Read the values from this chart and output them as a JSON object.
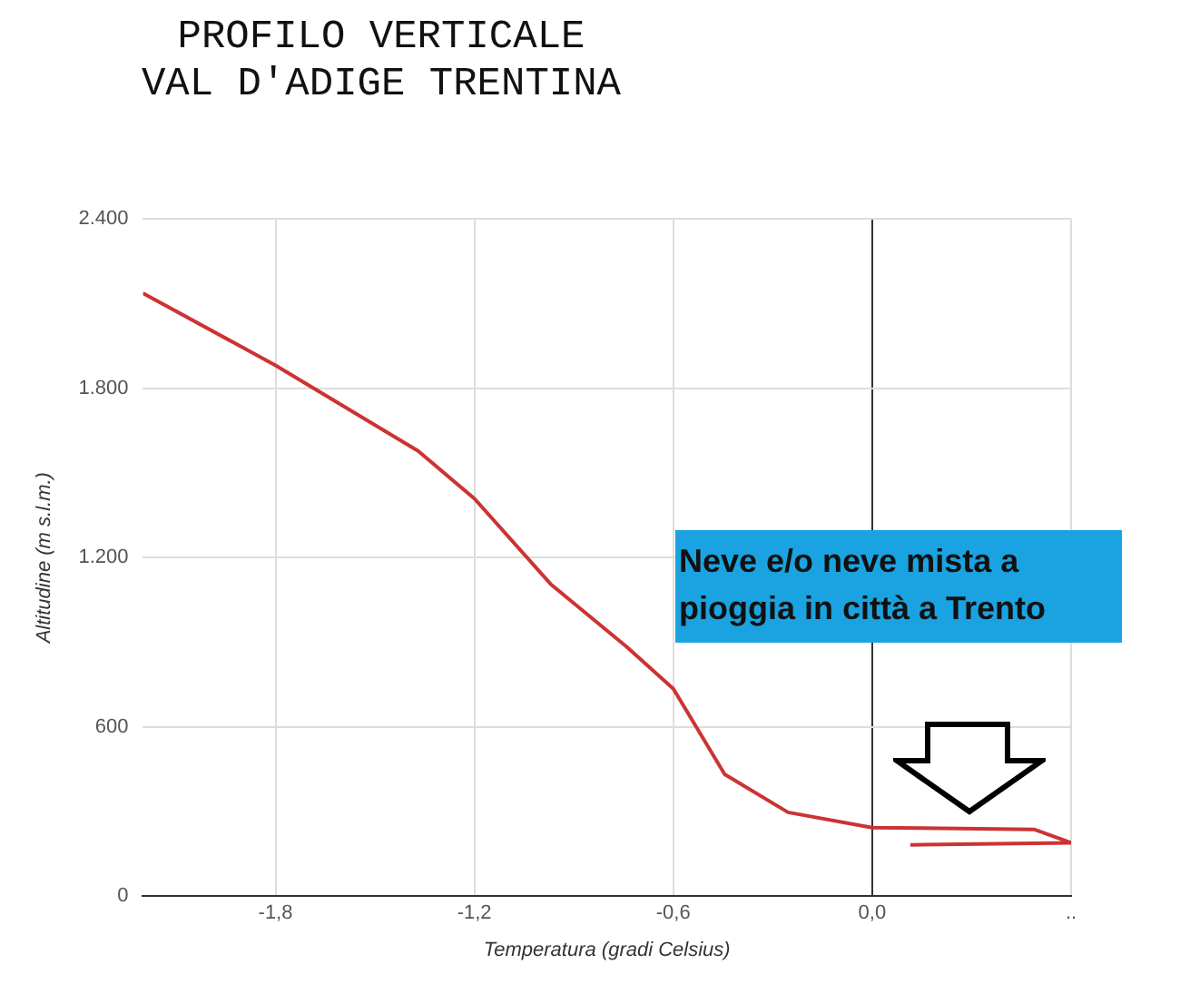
{
  "chart_data": {
    "type": "line",
    "title": "PROFILO VERTICALE\nVAL D'ADIGE TRENTINA",
    "xlabel": "Temperatura (gradi Celsius)",
    "ylabel": "Altitudine (m s.l.m.)",
    "annotations": [
      "Neve e/o neve mista a pioggia in città a Trento"
    ],
    "series": [
      {
        "color": "#cc3333",
        "x": [
          -2.2,
          -1.8,
          -1.37,
          -1.2,
          -0.97,
          -0.74,
          -0.6,
          -0.445,
          -0.254,
          0.0,
          0.49,
          0.6,
          0.115
        ],
        "values": [
          2137,
          1881,
          1578,
          1409,
          1106,
          883,
          735,
          432,
          297,
          243,
          236,
          189,
          182
        ]
      }
    ],
    "xlim": [
      -2.2,
      0.6
    ],
    "xticks": [
      {
        "value": -1.8,
        "label": "-1,8"
      },
      {
        "value": -1.2,
        "label": "-1,2"
      },
      {
        "value": -0.6,
        "label": "-0,6"
      },
      {
        "value": 0,
        "label": "0,0"
      },
      {
        "value": 0.6,
        "label": ".."
      }
    ],
    "ylim": [
      0,
      2400
    ],
    "yticks": [
      0,
      600,
      {
        "value": 1200,
        "label": "1.200"
      },
      {
        "value": 1800,
        "label": "1.800"
      },
      {
        "value": 2400,
        "label": "2.400"
      }
    ],
    "grid": true,
    "legend": false,
    "marker": "none",
    "line_style": "solid"
  }
}
